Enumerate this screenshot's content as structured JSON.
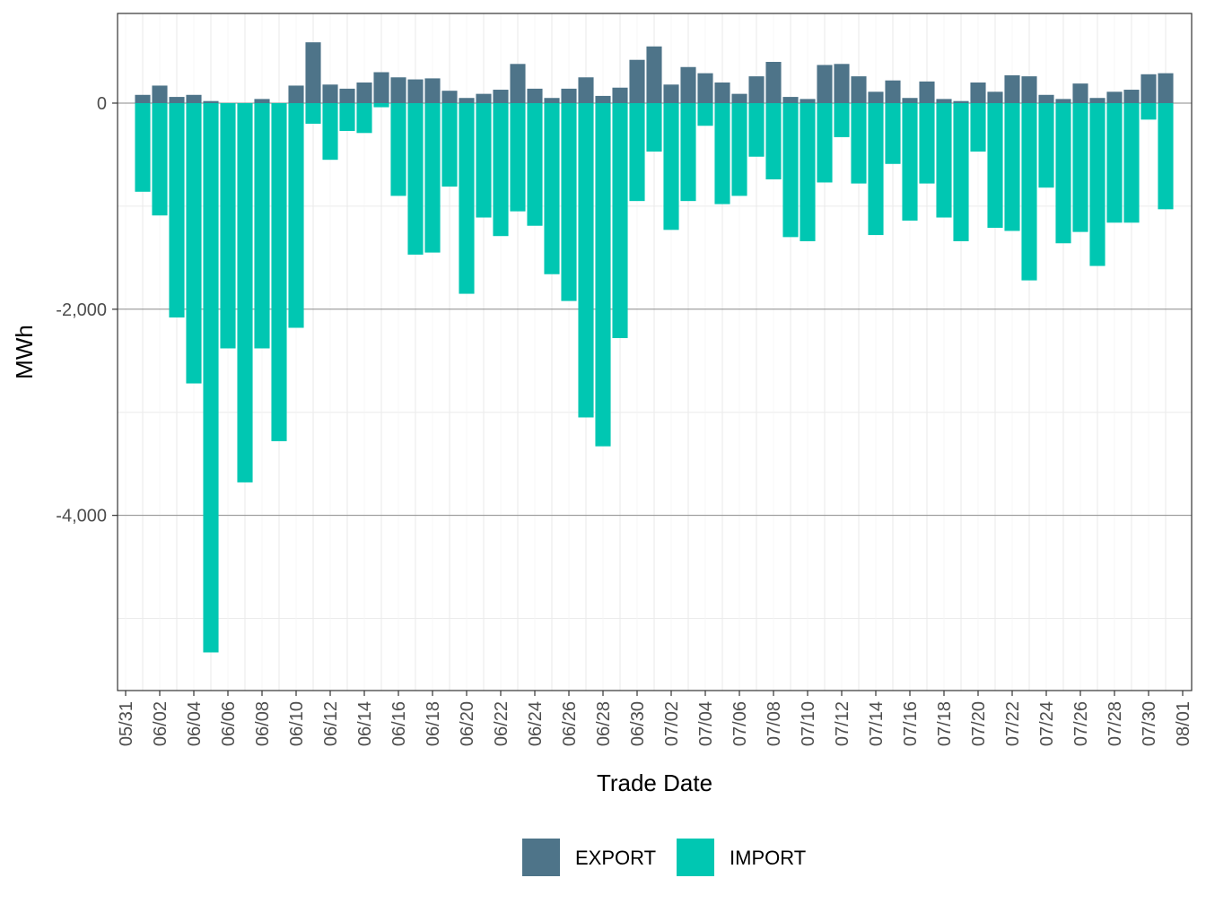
{
  "chart_data": {
    "type": "bar",
    "stacked": true,
    "title": "",
    "xlabel": "Trade Date",
    "ylabel": "MWh",
    "ylim": [
      -5700,
      870
    ],
    "yticks": [
      0,
      -2000,
      -4000
    ],
    "ytick_labels": [
      "0",
      "-2,000",
      "-4,000"
    ],
    "categories": [
      "06/01",
      "06/02",
      "06/03",
      "06/04",
      "06/05",
      "06/06",
      "06/07",
      "06/08",
      "06/09",
      "06/10",
      "06/11",
      "06/12",
      "06/13",
      "06/14",
      "06/15",
      "06/16",
      "06/17",
      "06/18",
      "06/19",
      "06/20",
      "06/21",
      "06/22",
      "06/23",
      "06/24",
      "06/25",
      "06/26",
      "06/27",
      "06/28",
      "06/29",
      "06/30",
      "07/01",
      "07/02",
      "07/03",
      "07/04",
      "07/05",
      "07/06",
      "07/07",
      "07/08",
      "07/09",
      "07/10",
      "07/11",
      "07/12",
      "07/13",
      "07/14",
      "07/15",
      "07/16",
      "07/17",
      "07/18",
      "07/19",
      "07/20",
      "07/21",
      "07/22",
      "07/23",
      "07/24",
      "07/25",
      "07/26",
      "07/27",
      "07/28",
      "07/29",
      "07/30",
      "07/31"
    ],
    "xtick_labels": [
      "05/31",
      "06/02",
      "06/04",
      "06/06",
      "06/08",
      "06/10",
      "06/12",
      "06/14",
      "06/16",
      "06/18",
      "06/20",
      "06/22",
      "06/24",
      "06/26",
      "06/28",
      "06/30",
      "07/02",
      "07/04",
      "07/06",
      "07/08",
      "07/10",
      "07/12",
      "07/14",
      "07/16",
      "07/18",
      "07/20",
      "07/22",
      "07/24",
      "07/26",
      "07/28",
      "07/30",
      "08/01"
    ],
    "series": [
      {
        "name": "EXPORT",
        "color": "#4e7489",
        "values": [
          80,
          170,
          60,
          80,
          20,
          0,
          0,
          40,
          0,
          170,
          590,
          180,
          140,
          200,
          300,
          250,
          230,
          240,
          120,
          50,
          90,
          130,
          380,
          140,
          50,
          140,
          250,
          70,
          150,
          420,
          550,
          180,
          350,
          290,
          200,
          90,
          260,
          400,
          60,
          40,
          370,
          380,
          260,
          110,
          220,
          50,
          210,
          40,
          20,
          200,
          110,
          270,
          260,
          80,
          40,
          190,
          50,
          110,
          130,
          280,
          290
        ]
      },
      {
        "name": "IMPORT",
        "color": "#00c7b2",
        "values": [
          -860,
          -1090,
          -2080,
          -2720,
          -5330,
          -2380,
          -3680,
          -2380,
          -3280,
          -2180,
          -200,
          -550,
          -270,
          -290,
          -40,
          -900,
          -1470,
          -1450,
          -810,
          -1850,
          -1110,
          -1290,
          -1050,
          -1190,
          -1660,
          -1920,
          -3050,
          -3330,
          -2280,
          -950,
          -470,
          -1230,
          -950,
          -220,
          -980,
          -900,
          -520,
          -740,
          -1300,
          -1340,
          -770,
          -330,
          -780,
          -1280,
          -590,
          -1140,
          -780,
          -1110,
          -1340,
          -470,
          -1210,
          -1240,
          -1720,
          -820,
          -1360,
          -1250,
          -1580,
          -1160,
          -1160,
          -160,
          -1030
        ]
      }
    ],
    "legend_position": "bottom"
  }
}
